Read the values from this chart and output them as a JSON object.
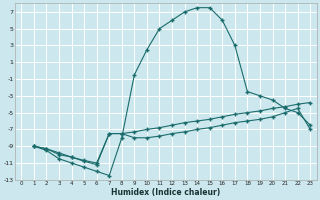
{
  "xlabel": "Humidex (Indice chaleur)",
  "background_color": "#cce8ee",
  "grid_color": "#ffffff",
  "line_color": "#1a6b6b",
  "xlim": [
    -0.5,
    23.5
  ],
  "ylim": [
    -13,
    8
  ],
  "yticks": [
    7,
    5,
    3,
    1,
    -1,
    -3,
    -5,
    -7,
    -9,
    -11,
    -13
  ],
  "xticks": [
    0,
    1,
    2,
    3,
    4,
    5,
    6,
    7,
    8,
    9,
    10,
    11,
    12,
    13,
    14,
    15,
    16,
    17,
    18,
    19,
    20,
    21,
    22,
    23
  ],
  "line1_x": [
    1,
    2,
    3,
    4,
    5,
    6,
    7,
    8,
    9,
    10,
    11,
    12,
    13,
    14,
    15,
    16,
    17,
    18,
    19,
    20,
    21,
    22,
    23
  ],
  "line1_y": [
    -9.0,
    -9.5,
    -10.5,
    -11.0,
    -11.5,
    -12.0,
    -12.5,
    -8.0,
    -0.5,
    2.5,
    5.0,
    6.0,
    7.0,
    7.5,
    7.5,
    6.0,
    3.0,
    -2.5,
    -3.0,
    -3.5,
    -4.5,
    -5.0,
    -6.5
  ],
  "line2_x": [
    1,
    2,
    3,
    4,
    5,
    6,
    7,
    8,
    9,
    10,
    11,
    12,
    13,
    14,
    15,
    16,
    17,
    18,
    19,
    20,
    21,
    22,
    23
  ],
  "line2_y": [
    -9.0,
    -9.3,
    -10.0,
    -10.3,
    -10.7,
    -11.0,
    -7.5,
    -7.5,
    -7.3,
    -7.0,
    -6.8,
    -6.5,
    -6.2,
    -6.0,
    -5.8,
    -5.5,
    -5.2,
    -5.0,
    -4.8,
    -4.5,
    -4.3,
    -4.0,
    -3.8
  ],
  "line3_x": [
    1,
    2,
    3,
    4,
    5,
    6,
    7,
    8,
    9,
    10,
    11,
    12,
    13,
    14,
    15,
    16,
    17,
    18,
    19,
    20,
    21,
    22,
    23
  ],
  "line3_y": [
    -9.0,
    -9.3,
    -9.8,
    -10.3,
    -10.8,
    -11.2,
    -7.5,
    -7.5,
    -8.0,
    -8.0,
    -7.8,
    -7.5,
    -7.3,
    -7.0,
    -6.8,
    -6.5,
    -6.2,
    -6.0,
    -5.8,
    -5.5,
    -5.0,
    -4.5,
    -7.0
  ]
}
